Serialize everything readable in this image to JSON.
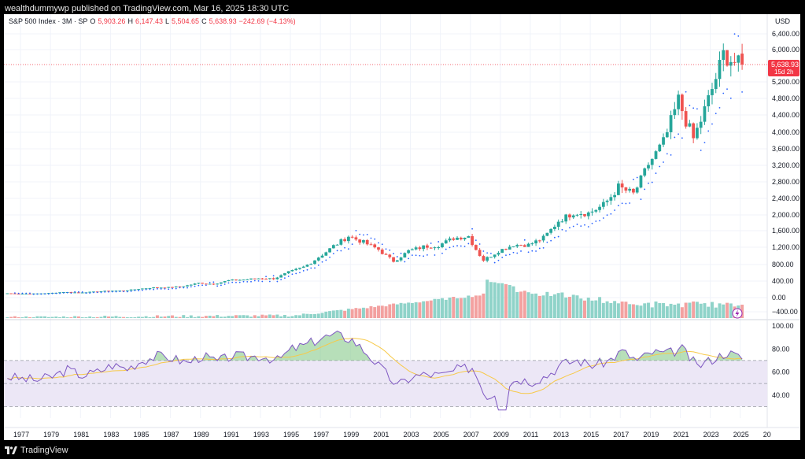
{
  "header": {
    "caption": "wealthdummywp published on TradingView.com, Mar 16, 2025 18:30 UTC"
  },
  "legend": {
    "symbol": "S&P 500 Index · 3M · SP",
    "open": "5,903.26",
    "high": "6,147.43",
    "low": "5,504.65",
    "close": "5,638.93",
    "change": "−242.69 (−4.13%)"
  },
  "footer": {
    "brand": "TradingView"
  },
  "price_scale": {
    "currency": "USD",
    "ticks": [
      "6,400.00",
      "6,000.00",
      "5,200.00",
      "4,800.00",
      "4,400.00",
      "4,000.00",
      "3,600.00",
      "3,200.00",
      "2,800.00",
      "2,400.00",
      "2,000.00",
      "1,600.00",
      "1,200.00",
      "800.00",
      "400.00",
      "0.00",
      "−400.00"
    ],
    "last_price_label": "5,638.93",
    "countdown_label": "15d 2h"
  },
  "rsi_scale": {
    "ticks": [
      "100.00",
      "80.00",
      "60.00",
      "40.00"
    ]
  },
  "time_axis": {
    "labels": [
      "1977",
      "1979",
      "1981",
      "1983",
      "1985",
      "1987",
      "1989",
      "1991",
      "1993",
      "1995",
      "1997",
      "1999",
      "2001",
      "2003",
      "2005",
      "2007",
      "2009",
      "2011",
      "2013",
      "2015",
      "2017",
      "2019",
      "2021",
      "2023",
      "2025",
      "20"
    ]
  },
  "colors": {
    "up": "#26a69a",
    "down": "#ef5350",
    "sar": "#2962ff",
    "rsi": "#7e57c2",
    "rsi_ma": "#f7c948",
    "rsi_band": "#ece7f6",
    "vol_up": "#8fd3c9",
    "vol_down": "#f3a1a0",
    "last_price": "#f23645"
  },
  "chart_data": {
    "type": "candlestick",
    "title": "S&P 500 Index · 3M · SP",
    "ylabel": "USD",
    "x_range": [
      "1976-Q1",
      "2025-Q1"
    ],
    "price_axis_range": [
      -400,
      6400
    ],
    "price_axis": "log-like",
    "last": {
      "open": 5903.26,
      "high": 6147.43,
      "low": 5504.65,
      "close": 5638.93,
      "change": -242.69,
      "change_pct": -4.13
    },
    "close_by_year": [
      [
        1976,
        107
      ],
      [
        1977,
        95
      ],
      [
        1978,
        96
      ],
      [
        1979,
        108
      ],
      [
        1980,
        136
      ],
      [
        1981,
        122
      ],
      [
        1982,
        141
      ],
      [
        1983,
        165
      ],
      [
        1984,
        167
      ],
      [
        1985,
        211
      ],
      [
        1986,
        242
      ],
      [
        1987,
        247
      ],
      [
        1988,
        278
      ],
      [
        1989,
        353
      ],
      [
        1990,
        330
      ],
      [
        1991,
        417
      ],
      [
        1992,
        436
      ],
      [
        1993,
        466
      ],
      [
        1994,
        459
      ],
      [
        1995,
        616
      ],
      [
        1996,
        741
      ],
      [
        1997,
        970
      ],
      [
        1998,
        1229
      ],
      [
        1999,
        1469
      ],
      [
        2000,
        1320
      ],
      [
        2001,
        1148
      ],
      [
        2002,
        880
      ],
      [
        2003,
        1112
      ],
      [
        2004,
        1212
      ],
      [
        2005,
        1248
      ],
      [
        2006,
        1418
      ],
      [
        2007,
        1468
      ],
      [
        2008,
        903
      ],
      [
        2009,
        1115
      ],
      [
        2010,
        1258
      ],
      [
        2011,
        1258
      ],
      [
        2012,
        1426
      ],
      [
        2013,
        1848
      ],
      [
        2014,
        2059
      ],
      [
        2015,
        2044
      ],
      [
        2016,
        2239
      ],
      [
        2017,
        2674
      ],
      [
        2018,
        2507
      ],
      [
        2019,
        3231
      ],
      [
        2020,
        3756
      ],
      [
        2021,
        4766
      ],
      [
        2022,
        3840
      ],
      [
        2023,
        4770
      ],
      [
        2024,
        5882
      ],
      [
        2025,
        5639
      ]
    ],
    "rsi_scale_range": [
      20,
      100
    ],
    "rsi_levels": [
      70,
      50,
      30
    ],
    "rsi_by_year": [
      [
        1976,
        56
      ],
      [
        1977,
        54
      ],
      [
        1978,
        53
      ],
      [
        1979,
        56
      ],
      [
        1980,
        62
      ],
      [
        1981,
        57
      ],
      [
        1982,
        60
      ],
      [
        1983,
        66
      ],
      [
        1984,
        63
      ],
      [
        1985,
        70
      ],
      [
        1986,
        74
      ],
      [
        1987,
        72
      ],
      [
        1988,
        68
      ],
      [
        1989,
        74
      ],
      [
        1990,
        69
      ],
      [
        1991,
        74
      ],
      [
        1992,
        73
      ],
      [
        1993,
        74
      ],
      [
        1994,
        70
      ],
      [
        1995,
        80
      ],
      [
        1996,
        84
      ],
      [
        1997,
        90
      ],
      [
        1998,
        92
      ],
      [
        1999,
        88
      ],
      [
        2000,
        76
      ],
      [
        2001,
        62
      ],
      [
        2002,
        48
      ],
      [
        2003,
        56
      ],
      [
        2004,
        58
      ],
      [
        2005,
        57
      ],
      [
        2006,
        62
      ],
      [
        2007,
        64
      ],
      [
        2008,
        38
      ],
      [
        2009,
        46
      ],
      [
        2010,
        54
      ],
      [
        2011,
        52
      ],
      [
        2012,
        57
      ],
      [
        2013,
        67
      ],
      [
        2014,
        70
      ],
      [
        2015,
        66
      ],
      [
        2016,
        69
      ],
      [
        2017,
        78
      ],
      [
        2018,
        70
      ],
      [
        2019,
        77
      ],
      [
        2020,
        76
      ],
      [
        2021,
        80
      ],
      [
        2022,
        65
      ],
      [
        2023,
        71
      ],
      [
        2024,
        77
      ],
      [
        2025,
        72
      ]
    ]
  }
}
